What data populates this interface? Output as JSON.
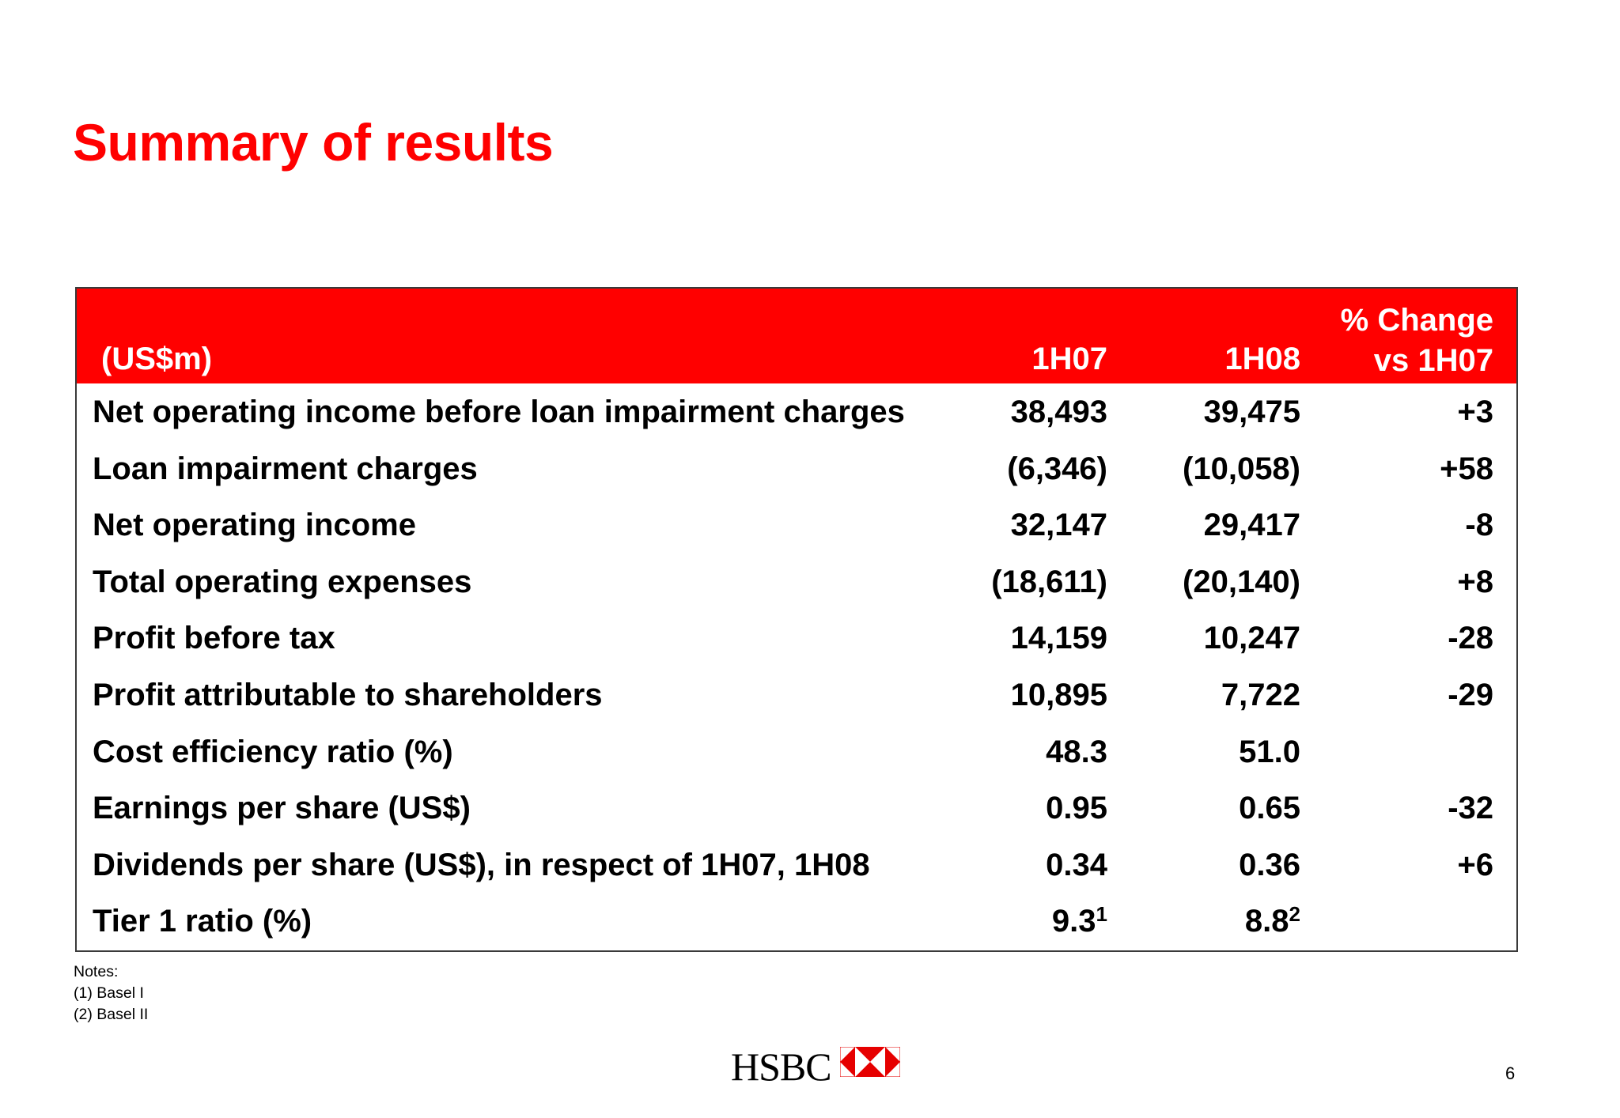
{
  "slide": {
    "title": "Summary of results",
    "page_number": "6"
  },
  "table": {
    "header": {
      "unit": "(US$m)",
      "col1": "1H07",
      "col2": "1H08",
      "col3_line1": "% Change",
      "col3_line2": "vs 1H07"
    },
    "rows": [
      {
        "label": "Net operating income before loan impairment charges",
        "v1": "38,493",
        "v2": "39,475",
        "v3": "+3"
      },
      {
        "label": "Loan impairment charges",
        "v1": "(6,346)",
        "v2": "(10,058)",
        "v3": "+58"
      },
      {
        "label": "Net operating income",
        "v1": "32,147",
        "v2": "29,417",
        "v3": "-8"
      },
      {
        "label": "Total operating expenses",
        "v1": "(18,611)",
        "v2": "(20,140)",
        "v3": "+8"
      },
      {
        "label": "Profit before tax",
        "v1": "14,159",
        "v2": "10,247",
        "v3": "-28"
      },
      {
        "label": "Profit attributable to shareholders",
        "v1": "10,895",
        "v2": "7,722",
        "v3": "-29"
      },
      {
        "label": "Cost efficiency ratio (%)",
        "v1": "48.3",
        "v2": "51.0",
        "v3": ""
      },
      {
        "label": "Earnings per share (US$)",
        "v1": "0.95",
        "v2": "0.65",
        "v3": "-32"
      },
      {
        "label": "Dividends per share (US$), in respect of 1H07, 1H08",
        "v1": "0.34",
        "v2": "0.36",
        "v3": "+6"
      },
      {
        "label": "Tier 1 ratio (%)",
        "v1": "9.3",
        "v1_sup": "1",
        "v2": "8.8",
        "v2_sup": "2",
        "v3": ""
      }
    ]
  },
  "notes": {
    "heading": "Notes:",
    "items": [
      "(1) Basel I",
      "(2) Basel II"
    ]
  },
  "logo": {
    "text": "HSBC",
    "colors": {
      "red": "#e60000",
      "white": "#ffffff"
    }
  },
  "colors": {
    "accent": "#ff0000",
    "text": "#000000",
    "border": "#3a3a3a"
  }
}
